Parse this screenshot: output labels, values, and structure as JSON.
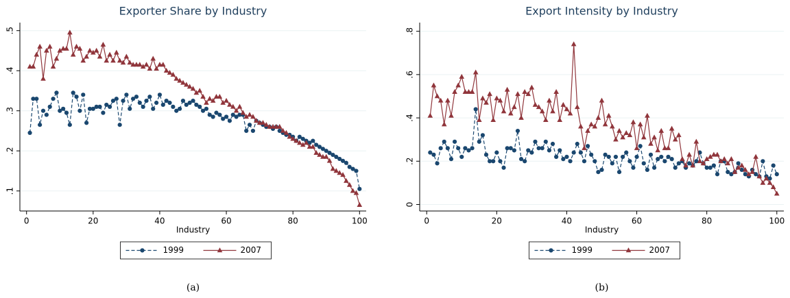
{
  "chart_data": [
    {
      "type": "line",
      "title": "Exporter Share by Industry",
      "xlabel": "Industry",
      "caption": "(a)",
      "xlim": [
        -2,
        102
      ],
      "xticks": [
        0,
        20,
        40,
        60,
        80,
        100
      ],
      "ylim": [
        0.05,
        0.52
      ],
      "yticks": [
        {
          "value": 0.1,
          "label": ".1"
        },
        {
          "value": 0.2,
          "label": ".2"
        },
        {
          "value": 0.3,
          "label": ".3"
        },
        {
          "value": 0.4,
          "label": ".4"
        },
        {
          "value": 0.5,
          "label": ".5"
        }
      ],
      "grid": true,
      "legend": "bottom",
      "x": [
        1,
        2,
        3,
        4,
        5,
        6,
        7,
        8,
        9,
        10,
        11,
        12,
        13,
        14,
        15,
        16,
        17,
        18,
        19,
        20,
        21,
        22,
        23,
        24,
        25,
        26,
        27,
        28,
        29,
        30,
        31,
        32,
        33,
        34,
        35,
        36,
        37,
        38,
        39,
        40,
        41,
        42,
        43,
        44,
        45,
        46,
        47,
        48,
        49,
        50,
        51,
        52,
        53,
        54,
        55,
        56,
        57,
        58,
        59,
        60,
        61,
        62,
        63,
        64,
        65,
        66,
        67,
        68,
        69,
        70,
        71,
        72,
        73,
        74,
        75,
        76,
        77,
        78,
        79,
        80,
        81,
        82,
        83,
        84,
        85,
        86,
        87,
        88,
        89,
        90,
        91,
        92,
        93,
        94,
        95,
        96,
        97,
        98,
        99,
        100
      ],
      "series": [
        {
          "name": "1999",
          "color": "#1a476f",
          "linestyle": "dashed",
          "marker": "circle",
          "values": [
            0.245,
            0.33,
            0.33,
            0.265,
            0.3,
            0.29,
            0.31,
            0.33,
            0.345,
            0.3,
            0.305,
            0.295,
            0.265,
            0.345,
            0.335,
            0.3,
            0.34,
            0.27,
            0.305,
            0.305,
            0.31,
            0.31,
            0.295,
            0.315,
            0.31,
            0.325,
            0.33,
            0.265,
            0.325,
            0.34,
            0.305,
            0.33,
            0.335,
            0.32,
            0.31,
            0.325,
            0.335,
            0.305,
            0.32,
            0.34,
            0.315,
            0.325,
            0.32,
            0.31,
            0.3,
            0.305,
            0.325,
            0.315,
            0.32,
            0.325,
            0.315,
            0.31,
            0.3,
            0.305,
            0.29,
            0.285,
            0.295,
            0.29,
            0.28,
            0.285,
            0.275,
            0.29,
            0.285,
            0.29,
            0.29,
            0.25,
            0.265,
            0.25,
            0.275,
            0.27,
            0.265,
            0.26,
            0.26,
            0.255,
            0.26,
            0.25,
            0.245,
            0.24,
            0.24,
            0.235,
            0.225,
            0.235,
            0.23,
            0.225,
            0.22,
            0.225,
            0.215,
            0.21,
            0.205,
            0.2,
            0.195,
            0.19,
            0.185,
            0.18,
            0.175,
            0.17,
            0.16,
            0.155,
            0.15,
            0.105
          ]
        },
        {
          "name": "2007",
          "color": "#90353b",
          "linestyle": "solid",
          "marker": "triangle",
          "values": [
            0.41,
            0.41,
            0.44,
            0.46,
            0.38,
            0.45,
            0.46,
            0.41,
            0.43,
            0.45,
            0.455,
            0.455,
            0.495,
            0.44,
            0.46,
            0.455,
            0.425,
            0.435,
            0.45,
            0.445,
            0.45,
            0.435,
            0.465,
            0.425,
            0.44,
            0.425,
            0.445,
            0.425,
            0.42,
            0.435,
            0.42,
            0.415,
            0.415,
            0.415,
            0.41,
            0.415,
            0.405,
            0.43,
            0.405,
            0.415,
            0.415,
            0.4,
            0.395,
            0.39,
            0.38,
            0.375,
            0.37,
            0.365,
            0.36,
            0.355,
            0.345,
            0.35,
            0.335,
            0.32,
            0.33,
            0.325,
            0.335,
            0.335,
            0.32,
            0.325,
            0.315,
            0.31,
            0.3,
            0.31,
            0.295,
            0.285,
            0.29,
            0.285,
            0.275,
            0.27,
            0.27,
            0.265,
            0.26,
            0.26,
            0.26,
            0.26,
            0.25,
            0.245,
            0.235,
            0.23,
            0.225,
            0.22,
            0.215,
            0.22,
            0.21,
            0.21,
            0.195,
            0.19,
            0.185,
            0.185,
            0.175,
            0.155,
            0.15,
            0.145,
            0.14,
            0.125,
            0.115,
            0.1,
            0.095,
            0.065
          ]
        }
      ]
    },
    {
      "type": "line",
      "title": "Export Intensity by Industry",
      "xlabel": "Industry",
      "caption": "(b)",
      "xlim": [
        -2,
        102
      ],
      "xticks": [
        0,
        20,
        40,
        60,
        80,
        100
      ],
      "ylim": [
        -0.03,
        0.84
      ],
      "yticks": [
        0,
        {
          "value": 0.2,
          "label": ".2"
        },
        {
          "value": 0.4,
          "label": ".4"
        },
        {
          "value": 0.6,
          "label": ".6"
        },
        {
          "value": 0.8,
          "label": ".8"
        }
      ],
      "grid": true,
      "legend": "bottom",
      "x": [
        1,
        2,
        3,
        4,
        5,
        6,
        7,
        8,
        9,
        10,
        11,
        12,
        13,
        14,
        15,
        16,
        17,
        18,
        19,
        20,
        21,
        22,
        23,
        24,
        25,
        26,
        27,
        28,
        29,
        30,
        31,
        32,
        33,
        34,
        35,
        36,
        37,
        38,
        39,
        40,
        41,
        42,
        43,
        44,
        45,
        46,
        47,
        48,
        49,
        50,
        51,
        52,
        53,
        54,
        55,
        56,
        57,
        58,
        59,
        60,
        61,
        62,
        63,
        64,
        65,
        66,
        67,
        68,
        69,
        70,
        71,
        72,
        73,
        74,
        75,
        76,
        77,
        78,
        79,
        80,
        81,
        82,
        83,
        84,
        85,
        86,
        87,
        88,
        89,
        90,
        91,
        92,
        93,
        94,
        95,
        96,
        97,
        98,
        99,
        100
      ],
      "series": [
        {
          "name": "1999",
          "color": "#1a476f",
          "linestyle": "dashed",
          "marker": "circle",
          "values": [
            0.24,
            0.23,
            0.19,
            0.26,
            0.29,
            0.26,
            0.21,
            0.29,
            0.26,
            0.22,
            0.26,
            0.25,
            0.26,
            0.44,
            0.29,
            0.32,
            0.23,
            0.2,
            0.2,
            0.24,
            0.2,
            0.17,
            0.26,
            0.26,
            0.25,
            0.34,
            0.21,
            0.2,
            0.25,
            0.24,
            0.29,
            0.26,
            0.26,
            0.29,
            0.25,
            0.28,
            0.22,
            0.25,
            0.21,
            0.22,
            0.2,
            0.24,
            0.28,
            0.24,
            0.2,
            0.27,
            0.23,
            0.2,
            0.15,
            0.16,
            0.23,
            0.22,
            0.19,
            0.22,
            0.15,
            0.22,
            0.24,
            0.2,
            0.17,
            0.22,
            0.27,
            0.19,
            0.16,
            0.23,
            0.17,
            0.21,
            0.22,
            0.2,
            0.22,
            0.21,
            0.17,
            0.19,
            0.2,
            0.17,
            0.19,
            0.18,
            0.2,
            0.24,
            0.19,
            0.17,
            0.17,
            0.18,
            0.14,
            0.2,
            0.2,
            0.15,
            0.14,
            0.15,
            0.19,
            0.16,
            0.14,
            0.13,
            0.16,
            0.14,
            0.13,
            0.2,
            0.13,
            0.12,
            0.18,
            0.14
          ]
        },
        {
          "name": "2007",
          "color": "#90353b",
          "linestyle": "solid",
          "marker": "triangle",
          "values": [
            0.41,
            0.55,
            0.5,
            0.48,
            0.37,
            0.48,
            0.41,
            0.52,
            0.55,
            0.59,
            0.52,
            0.52,
            0.52,
            0.61,
            0.39,
            0.49,
            0.47,
            0.51,
            0.39,
            0.49,
            0.48,
            0.43,
            0.53,
            0.42,
            0.45,
            0.51,
            0.4,
            0.52,
            0.51,
            0.54,
            0.46,
            0.45,
            0.43,
            0.39,
            0.48,
            0.43,
            0.52,
            0.39,
            0.46,
            0.44,
            0.42,
            0.74,
            0.45,
            0.36,
            0.26,
            0.34,
            0.37,
            0.36,
            0.4,
            0.48,
            0.37,
            0.41,
            0.36,
            0.3,
            0.34,
            0.31,
            0.33,
            0.32,
            0.38,
            0.26,
            0.37,
            0.31,
            0.41,
            0.28,
            0.31,
            0.25,
            0.34,
            0.26,
            0.26,
            0.35,
            0.3,
            0.32,
            0.21,
            0.18,
            0.23,
            0.18,
            0.29,
            0.2,
            0.19,
            0.21,
            0.22,
            0.23,
            0.23,
            0.2,
            0.21,
            0.19,
            0.21,
            0.15,
            0.17,
            0.18,
            0.16,
            0.14,
            0.15,
            0.22,
            0.13,
            0.1,
            0.12,
            0.1,
            0.08,
            0.05
          ]
        }
      ]
    }
  ]
}
